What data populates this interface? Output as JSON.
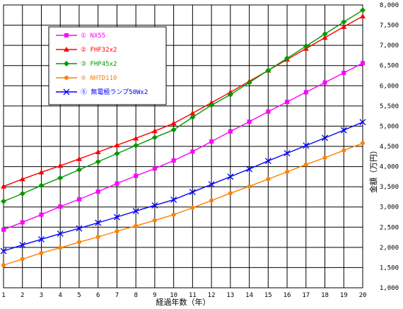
{
  "chart_data": {
    "type": "line",
    "x": [
      1,
      2,
      3,
      4,
      5,
      6,
      7,
      8,
      9,
      10,
      11,
      12,
      13,
      14,
      15,
      16,
      17,
      18,
      19,
      20
    ],
    "x_ticks": [
      "1",
      "2",
      "3",
      "4",
      "5",
      "6",
      "7",
      "8",
      "9",
      "10",
      "11",
      "12",
      "13",
      "14",
      "15",
      "16",
      "17",
      "18",
      "19",
      "20"
    ],
    "xlabel": "経過年数（年）",
    "ylabel": "金額（万円）",
    "ylim": [
      1000,
      8000
    ],
    "y_ticks": [
      {
        "v": 1000,
        "label": "1,000"
      },
      {
        "v": 1500,
        "label": "1,500"
      },
      {
        "v": 2000,
        "label": "2,000"
      },
      {
        "v": 2500,
        "label": "2,500"
      },
      {
        "v": 3000,
        "label": "3,000"
      },
      {
        "v": 3500,
        "label": "3,500"
      },
      {
        "v": 4000,
        "label": "4,000"
      },
      {
        "v": 4500,
        "label": "4,500"
      },
      {
        "v": 5000,
        "label": "5,000"
      },
      {
        "v": 5500,
        "label": "5,500"
      },
      {
        "v": 6000,
        "label": "6,000"
      },
      {
        "v": 6500,
        "label": "6,500"
      },
      {
        "v": 7000,
        "label": "7,000"
      },
      {
        "v": 7500,
        "label": "7,500"
      },
      {
        "v": 8000,
        "label": "8,000"
      }
    ],
    "grid": true,
    "legend_position": "top-left",
    "series": [
      {
        "name": "① NX55",
        "color": "#ff00ff",
        "marker": "square",
        "values": [
          2440,
          2620,
          2810,
          3010,
          3190,
          3380,
          3580,
          3770,
          3950,
          4150,
          4370,
          4620,
          4870,
          5110,
          5360,
          5600,
          5840,
          6080,
          6320,
          6560
        ]
      },
      {
        "name": "② FHF32x2",
        "color": "#ff0000",
        "marker": "triangle",
        "values": [
          3510,
          3690,
          3860,
          4020,
          4190,
          4360,
          4530,
          4700,
          4880,
          5070,
          5320,
          5580,
          5840,
          6110,
          6380,
          6650,
          6920,
          7190,
          7460,
          7720
        ]
      },
      {
        "name": "③ FHP45x2",
        "color": "#009900",
        "marker": "diamond",
        "values": [
          3140,
          3330,
          3530,
          3720,
          3920,
          4120,
          4320,
          4520,
          4720,
          4910,
          5220,
          5520,
          5780,
          6080,
          6380,
          6680,
          6980,
          7280,
          7580,
          7870
        ]
      },
      {
        "name": "④ NHTD110",
        "color": "#ff8000",
        "marker": "circle",
        "values": [
          1560,
          1710,
          1860,
          1990,
          2130,
          2260,
          2400,
          2530,
          2670,
          2810,
          2980,
          3160,
          3340,
          3510,
          3690,
          3870,
          4050,
          4220,
          4400,
          4580
        ]
      },
      {
        "name": "⑤ 無電極ランプ50Wx2",
        "color": "#0000ff",
        "marker": "x",
        "values": [
          1910,
          2060,
          2200,
          2340,
          2470,
          2610,
          2750,
          2900,
          3040,
          3180,
          3370,
          3560,
          3750,
          3940,
          4140,
          4330,
          4520,
          4710,
          4900,
          5100
        ]
      }
    ]
  }
}
